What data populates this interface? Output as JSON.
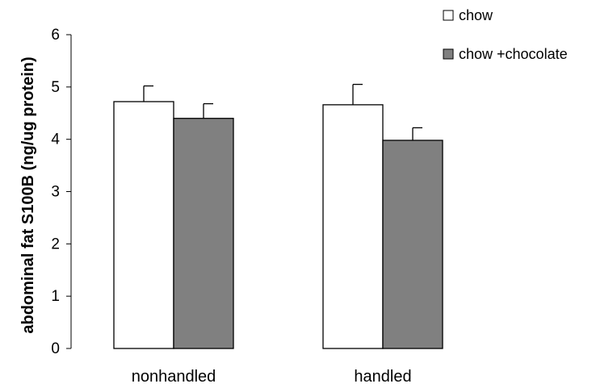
{
  "chart_data": {
    "type": "bar",
    "title": "",
    "xlabel": "",
    "ylabel": "abdominal fat S100B (ng/ug protein)",
    "ylim": [
      0,
      6
    ],
    "yticks": [
      0,
      1,
      2,
      3,
      4,
      5,
      6
    ],
    "categories": [
      "nonhandled",
      "handled"
    ],
    "series": [
      {
        "name": "chow",
        "values": [
          4.72,
          4.66
        ],
        "errors": [
          0.3,
          0.39
        ],
        "color": "#ffffff"
      },
      {
        "name": "chow +chocolate",
        "values": [
          4.4,
          3.98
        ],
        "errors": [
          0.28,
          0.24
        ],
        "color": "#808080"
      }
    ],
    "legend_position": "top-right",
    "grid": false
  }
}
